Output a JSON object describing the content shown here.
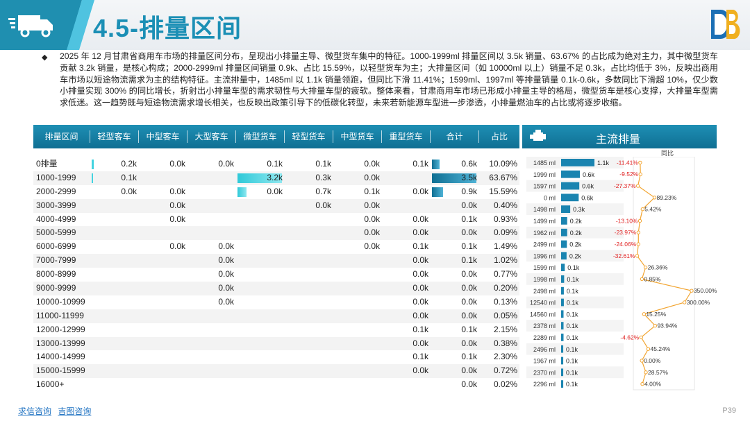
{
  "header": {
    "title": "4.5-排量区间"
  },
  "intro": "2025 年 12 月甘肃省商用车市场的排量区间分布，呈现出小排量主导、微型货车集中的特征。1000-1999ml 排量区间以 3.5k 销量、63.67% 的占比成为绝对主力，其中微型货车贡献 3.2k 销量，是核心构成；2000-2999ml 排量区间销量 0.9k、占比 15.59%，以轻型货车为主；大排量区间（如 10000ml 以上）销量不足 0.3k，占比均低于 3%，反映出商用车市场以短途物流需求为主的结构特征。主流排量中，1485ml 以 1.1k 销量领跑，但同比下滑 11.41%；1599ml、1997ml 等排量销量 0.1k-0.6k，多数同比下滑超 10%，仅少数小排量实现 300% 的同比增长，折射出小排量车型的需求韧性与大排量车型的疲软。整体来看，甘肃商用车市场已形成小排量主导的格局，微型货车是核心支撑，大排量车型需求低迷。这一趋势既与短途物流需求增长相关，也反映出政策引导下的低碳化转型，未来若新能源车型进一步渗透，小排量燃油车的占比或将逐步收缩。",
  "table": {
    "columns": [
      "排量区间",
      "轻型客车",
      "中型客车",
      "大型客车",
      "微型货车",
      "轻型货车",
      "中型货车",
      "重型货车",
      "合计",
      "占比"
    ],
    "rows": [
      {
        "name": "0排量",
        "cells": [
          "0.2k",
          "0.0k",
          "0.0k",
          "0.1k",
          "0.1k",
          "0.0k",
          "0.1k",
          "0.6k",
          "10.09%"
        ],
        "light": 0.05,
        "micro": 0,
        "total": 0.17
      },
      {
        "name": "1000-1999",
        "cells": [
          "0.1k",
          "",
          "",
          "3.2k",
          "0.3k",
          "0.0k",
          "",
          "3.5k",
          "63.67%"
        ],
        "light": 0.02,
        "micro": 1.0,
        "total": 1.0
      },
      {
        "name": "2000-2999",
        "cells": [
          "0.0k",
          "0.0k",
          "",
          "0.0k",
          "0.7k",
          "0.1k",
          "0.0k",
          "0.9k",
          "15.59%"
        ],
        "light": 0,
        "micro": 0.2,
        "total": 0.25
      },
      {
        "name": "3000-3999",
        "cells": [
          "",
          "0.0k",
          "",
          "",
          "0.0k",
          "0.0k",
          "",
          "0.0k",
          "0.40%"
        ]
      },
      {
        "name": "4000-4999",
        "cells": [
          "",
          "0.0k",
          "",
          "",
          "",
          "0.0k",
          "0.0k",
          "0.1k",
          "0.93%"
        ]
      },
      {
        "name": "5000-5999",
        "cells": [
          "",
          "",
          "",
          "",
          "",
          "0.0k",
          "0.0k",
          "0.0k",
          "0.09%"
        ]
      },
      {
        "name": "6000-6999",
        "cells": [
          "",
          "0.0k",
          "0.0k",
          "",
          "",
          "0.0k",
          "0.1k",
          "0.1k",
          "1.49%"
        ]
      },
      {
        "name": "7000-7999",
        "cells": [
          "",
          "",
          "0.0k",
          "",
          "",
          "",
          "0.0k",
          "0.1k",
          "1.02%"
        ]
      },
      {
        "name": "8000-8999",
        "cells": [
          "",
          "",
          "0.0k",
          "",
          "",
          "",
          "0.0k",
          "0.0k",
          "0.77%"
        ]
      },
      {
        "name": "9000-9999",
        "cells": [
          "",
          "",
          "0.0k",
          "",
          "",
          "",
          "0.0k",
          "0.0k",
          "0.20%"
        ]
      },
      {
        "name": "10000-10999",
        "cells": [
          "",
          "",
          "0.0k",
          "",
          "",
          "",
          "0.0k",
          "0.0k",
          "0.13%"
        ]
      },
      {
        "name": "11000-11999",
        "cells": [
          "",
          "",
          "",
          "",
          "",
          "",
          "0.0k",
          "0.0k",
          "0.05%"
        ]
      },
      {
        "name": "12000-12999",
        "cells": [
          "",
          "",
          "",
          "",
          "",
          "",
          "0.1k",
          "0.1k",
          "2.15%"
        ]
      },
      {
        "name": "13000-13999",
        "cells": [
          "",
          "",
          "",
          "",
          "",
          "",
          "0.0k",
          "0.0k",
          "0.38%"
        ]
      },
      {
        "name": "14000-14999",
        "cells": [
          "",
          "",
          "",
          "",
          "",
          "",
          "0.1k",
          "0.1k",
          "2.30%"
        ]
      },
      {
        "name": "15000-15999",
        "cells": [
          "",
          "",
          "",
          "",
          "",
          "",
          "0.0k",
          "0.0k",
          "0.72%"
        ]
      },
      {
        "name": "16000+",
        "cells": [
          "",
          "",
          "",
          "",
          "",
          "",
          "",
          "0.0k",
          "0.02%"
        ]
      }
    ]
  },
  "mainstream": {
    "title": "主流排量",
    "yoy_label": "同比",
    "items": [
      {
        "label": "1485 ml",
        "value": "1.1k",
        "v": 1.1,
        "yoy": "-11.41%",
        "y": -11.41
      },
      {
        "label": "1999 ml",
        "value": "0.6k",
        "v": 0.62,
        "yoy": "-9.52%",
        "y": -9.52
      },
      {
        "label": "1597 ml",
        "value": "0.6k",
        "v": 0.6,
        "yoy": "-27.37%",
        "y": -27.37
      },
      {
        "label": "0 ml",
        "value": "0.6k",
        "v": 0.58,
        "yoy": "89.23%",
        "y": 89.23
      },
      {
        "label": "1498 ml",
        "value": "0.3k",
        "v": 0.3,
        "yoy": "5.42%",
        "y": 5.42
      },
      {
        "label": "1499 ml",
        "value": "0.2k",
        "v": 0.2,
        "yoy": "-13.10%",
        "y": -13.1
      },
      {
        "label": "1962 ml",
        "value": "0.2k",
        "v": 0.2,
        "yoy": "-23.97%",
        "y": -23.97
      },
      {
        "label": "2499 ml",
        "value": "0.2k",
        "v": 0.19,
        "yoy": "-24.06%",
        "y": -24.06
      },
      {
        "label": "1996 ml",
        "value": "0.2k",
        "v": 0.18,
        "yoy": "-32.61%",
        "y": -32.61
      },
      {
        "label": "1599 ml",
        "value": "0.1k",
        "v": 0.12,
        "yoy": "26.36%",
        "y": 26.36
      },
      {
        "label": "1998 ml",
        "value": "0.1k",
        "v": 0.1,
        "yoy": "0.85%",
        "y": 0.85
      },
      {
        "label": "2498 ml",
        "value": "0.1k",
        "v": 0.09,
        "yoy": "350.00%",
        "y": 350
      },
      {
        "label": "12540 ml",
        "value": "0.1k",
        "v": 0.09,
        "yoy": "300.00%",
        "y": 300
      },
      {
        "label": "14560 ml",
        "value": "0.1k",
        "v": 0.08,
        "yoy": "15.25%",
        "y": 15.25
      },
      {
        "label": "2378 ml",
        "value": "0.1k",
        "v": 0.08,
        "yoy": "93.94%",
        "y": 93.94
      },
      {
        "label": "2289 ml",
        "value": "0.1k",
        "v": 0.08,
        "yoy": "-4.62%",
        "y": -4.62
      },
      {
        "label": "2496 ml",
        "value": "0.1k",
        "v": 0.07,
        "yoy": "45.24%",
        "y": 45.24
      },
      {
        "label": "1967 ml",
        "value": "0.1k",
        "v": 0.07,
        "yoy": "0.00%",
        "y": 0
      },
      {
        "label": "2370 ml",
        "value": "0.1k",
        "v": 0.07,
        "yoy": "28.57%",
        "y": 28.57
      },
      {
        "label": "2296 ml",
        "value": "0.1k",
        "v": 0.07,
        "yoy": "4.00%",
        "y": 4
      }
    ]
  },
  "colors": {
    "accent": "#1b8fb5",
    "bar": "#1a84b0",
    "micro_bar": "#43d3e0",
    "neg": "#e02020",
    "line": "#f2a531"
  },
  "footer": {
    "link1": "求信咨询",
    "link2": "吉图咨询",
    "page": "P39"
  }
}
